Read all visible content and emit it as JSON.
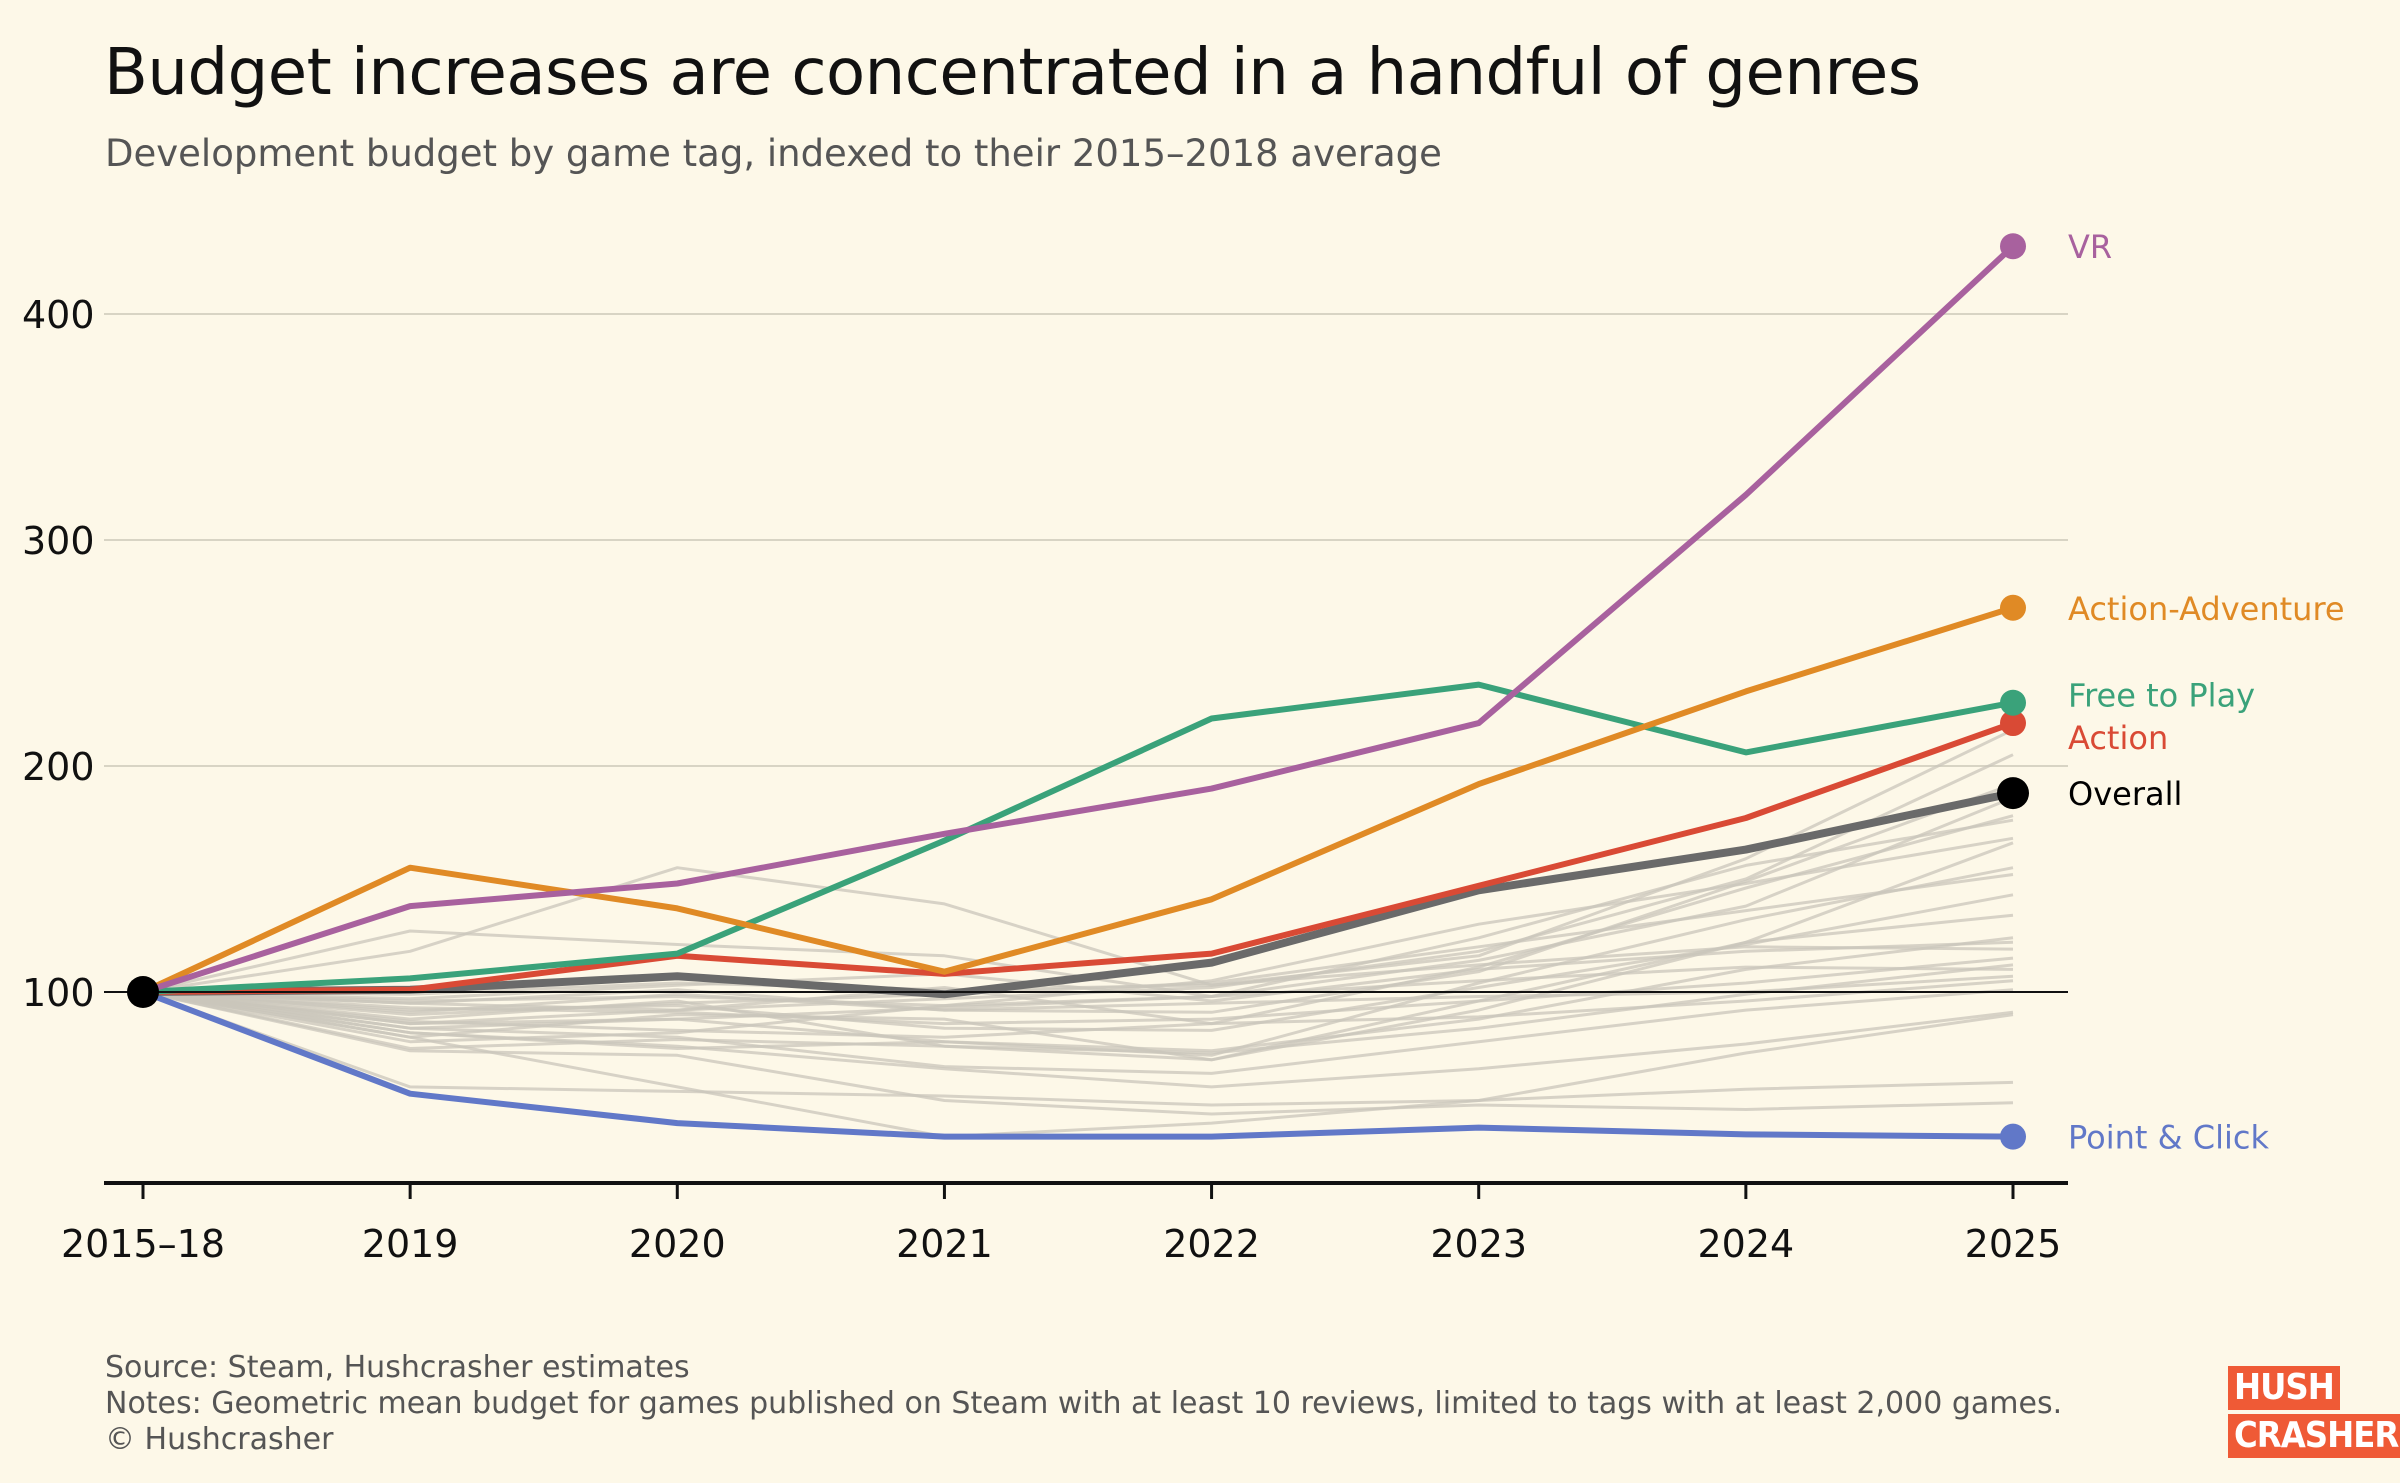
{
  "title": "Budget increases are concentrated in a handful of genres",
  "subtitle": "Development budget by game tag, indexed to their 2015–2018 average",
  "footer": {
    "source": "Source: Steam, Hushcrasher estimates",
    "notes": "Notes: Geometric mean budget for games published on Steam with at least 10 reviews, limited to tags with at least 2,000 games.",
    "copyright": "© Hushcrasher"
  },
  "logo": {
    "line1": "HUSH",
    "line2": "CRASHER",
    "color": "#ef5a36"
  },
  "chart_data": {
    "type": "line",
    "categories": [
      "2015–18",
      "2019",
      "2020",
      "2021",
      "2022",
      "2023",
      "2024",
      "2025"
    ],
    "yticks": [
      100,
      200,
      300,
      400
    ],
    "ylim": [
      18,
      455
    ],
    "grid": true,
    "baseline": 100,
    "highlight_series": [
      {
        "name": "Point & Click",
        "color": "#6178c8",
        "values": [
          100,
          55,
          42,
          36,
          36,
          40,
          37,
          36
        ]
      },
      {
        "name": "Overall",
        "color": "#000000",
        "values": [
          100,
          101,
          107,
          99,
          113,
          145,
          163,
          188
        ]
      },
      {
        "name": "Action",
        "color": "#d94a35",
        "values": [
          100,
          101,
          116,
          108,
          117,
          147,
          177,
          219
        ]
      },
      {
        "name": "Free to Play",
        "color": "#3aa27a",
        "values": [
          100,
          106,
          117,
          167,
          221,
          236,
          206,
          228
        ]
      },
      {
        "name": "Action-Adventure",
        "color": "#e08a25",
        "values": [
          100,
          155,
          137,
          109,
          141,
          192,
          233,
          270
        ]
      },
      {
        "name": "VR",
        "color": "#a8619e",
        "values": [
          100,
          138,
          148,
          170,
          190,
          219,
          320,
          430
        ]
      }
    ],
    "background_series": [
      {
        "values": [
          100,
          84,
          88,
          93,
          98,
          114,
          138,
          186
        ]
      },
      {
        "values": [
          100,
          127,
          121,
          116,
          98,
          124,
          156,
          176
        ]
      },
      {
        "values": [
          100,
          118,
          155,
          139,
          103,
          116,
          159,
          216
        ]
      },
      {
        "values": [
          100,
          82,
          75,
          78,
          72,
          104,
          132,
          155
        ]
      },
      {
        "values": [
          100,
          86,
          92,
          102,
          86,
          111,
          146,
          178
        ]
      },
      {
        "values": [
          100,
          80,
          90,
          88,
          70,
          92,
          122,
          134
        ]
      },
      {
        "values": [
          100,
          92,
          94,
          84,
          83,
          102,
          121,
          143
        ]
      },
      {
        "values": [
          100,
          88,
          96,
          76,
          70,
          96,
          122,
          166
        ]
      },
      {
        "values": [
          100,
          91,
          99,
          92,
          91,
          109,
          149,
          192
        ]
      },
      {
        "values": [
          100,
          86,
          88,
          78,
          74,
          88,
          110,
          124
        ]
      },
      {
        "values": [
          100,
          93,
          91,
          86,
          88,
          96,
          104,
          115
        ]
      },
      {
        "values": [
          100,
          78,
          82,
          94,
          105,
          130,
          148,
          168
        ]
      },
      {
        "values": [
          100,
          75,
          79,
          76,
          73,
          84,
          99,
          112
        ]
      },
      {
        "values": [
          100,
          95,
          101,
          92,
          95,
          98,
          100,
          107
        ]
      },
      {
        "values": [
          100,
          87,
          83,
          80,
          86,
          89,
          96,
          105
        ]
      },
      {
        "values": [
          100,
          90,
          95,
          99,
          104,
          120,
          136,
          152
        ]
      },
      {
        "values": [
          100,
          84,
          80,
          67,
          64,
          78,
          92,
          101
        ]
      },
      {
        "values": [
          100,
          97,
          103,
          108,
          96,
          110,
          118,
          122
        ]
      },
      {
        "values": [
          100,
          82,
          76,
          66,
          58,
          66,
          77,
          91
        ]
      },
      {
        "values": [
          100,
          58,
          56,
          54,
          50,
          52,
          57,
          60
        ]
      },
      {
        "values": [
          100,
          74,
          72,
          52,
          46,
          50,
          48,
          51
        ]
      },
      {
        "values": [
          100,
          80,
          58,
          36,
          42,
          52,
          73,
          90
        ]
      },
      {
        "values": [
          100,
          95,
          92,
          97,
          102,
          118,
          150,
          205
        ]
      },
      {
        "values": [
          100,
          99,
          104,
          101,
          103,
          112,
          120,
          119
        ]
      },
      {
        "values": [
          100,
          96,
          98,
          94,
          98,
          105,
          111,
          110
        ]
      }
    ]
  }
}
